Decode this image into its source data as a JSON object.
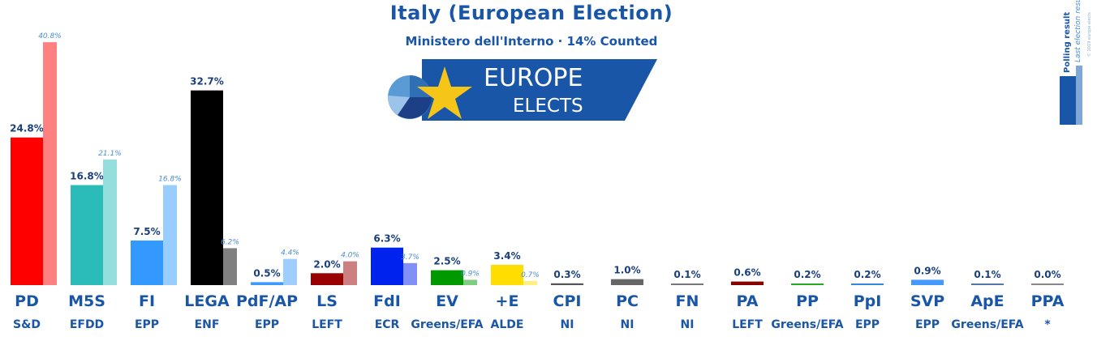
{
  "header": {
    "title": "Italy (European Election)",
    "subtitle": "Ministero dell'Interno · 14% Counted"
  },
  "logo": {
    "word1": "EUROPE",
    "word2": "ELECTS",
    "band_color": "#1a56a8",
    "star_color": "#f5c518"
  },
  "legend": {
    "current": "Polling result",
    "previous": "Last election result",
    "copyright": "© 2019 europe elects"
  },
  "chart_data": {
    "type": "bar",
    "categories": [
      "PD",
      "M5S",
      "FI",
      "LEGA",
      "PdF/AP",
      "LS",
      "FdI",
      "EV",
      "+E",
      "CPI",
      "PC",
      "FN",
      "PA",
      "PP",
      "PpI",
      "SVP",
      "ApE",
      "PPA"
    ],
    "groups": [
      "S&D",
      "EFDD",
      "EPP",
      "ENF",
      "EPP",
      "LEFT",
      "ECR",
      "Greens/EFA",
      "ALDE",
      "NI",
      "NI",
      "NI",
      "LEFT",
      "Greens/EFA",
      "EPP",
      "EPP",
      "Greens/EFA",
      "*"
    ],
    "series": [
      {
        "name": "Polling result",
        "values": [
          24.8,
          16.8,
          7.5,
          32.7,
          0.5,
          2.0,
          6.3,
          2.5,
          3.4,
          0.3,
          1.0,
          0.1,
          0.6,
          0.2,
          0.2,
          0.9,
          0.1,
          0.0
        ],
        "labels": [
          "24.8%",
          "16.8%",
          "7.5%",
          "32.7%",
          "0.5%",
          "2.0%",
          "6.3%",
          "2.5%",
          "3.4%",
          "0.3%",
          "1.0%",
          "0.1%",
          "0.6%",
          "0.2%",
          "0.2%",
          "0.9%",
          "0.1%",
          "0.0%"
        ],
        "colors": [
          "#ff0000",
          "#2bbbb8",
          "#3399ff",
          "#000000",
          "#3d9bff",
          "#990000",
          "#0022ee",
          "#009900",
          "#ffdd00",
          "#555555",
          "#666666",
          "#777777",
          "#880000",
          "#22aa22",
          "#3388dd",
          "#4499ff",
          "#5577aa",
          "#888888"
        ]
      },
      {
        "name": "Last election result",
        "values": [
          40.8,
          21.1,
          16.8,
          6.2,
          4.4,
          4.0,
          3.7,
          0.9,
          0.7,
          null,
          null,
          null,
          null,
          null,
          null,
          null,
          null,
          null
        ],
        "labels": [
          "40.8%",
          "21.1%",
          "16.8%",
          "6.2%",
          "4.4%",
          "4.0%",
          "3.7%",
          "0.9%",
          "0.7%",
          "",
          "",
          "",
          "",
          "",
          "",
          "",
          "",
          ""
        ],
        "colors": [
          "#ff8080",
          "#95dede",
          "#99ccff",
          "#808080",
          "#9ecdff",
          "#cc8080",
          "#8090f7",
          "#80cc80",
          "#ffee80",
          "#aaaaaa",
          "#b3b3b3",
          "#bbbbbb",
          "#c48080",
          "#91d591",
          "#99c4ee",
          "#a2ccff",
          "#aabbd5",
          "#c4c4c4"
        ]
      }
    ],
    "ylim": [
      0,
      42
    ],
    "legend_position": "top-right",
    "grid": false
  }
}
